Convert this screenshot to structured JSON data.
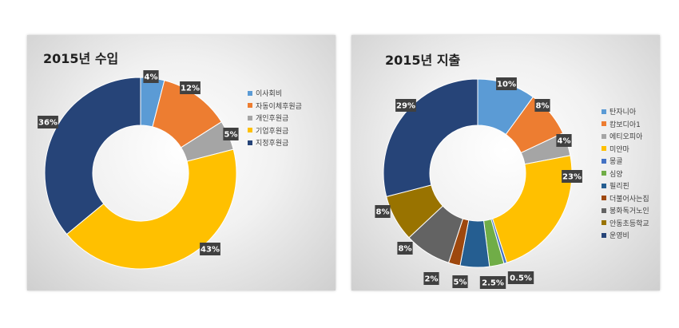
{
  "chart_data": [
    {
      "type": "pie",
      "title": "2015년 수입",
      "categories": [
        "이사회비",
        "자동이체후원금",
        "개인후원금",
        "기업후원금",
        "지정후원금"
      ],
      "values": [
        4,
        12,
        5,
        43,
        36
      ],
      "labels": [
        "4%",
        "12%",
        "5%",
        "43%",
        "36%"
      ],
      "colors": [
        "#5b9bd5",
        "#ed7d31",
        "#a5a5a5",
        "#ffc000",
        "#264478"
      ],
      "legend": "right"
    },
    {
      "type": "pie",
      "title": "2015년 지출",
      "categories": [
        "탄자니아",
        "캄보디아1",
        "에티오피아",
        "미얀마",
        "몽골",
        "심양",
        "필리핀",
        "더불어사는집",
        "봉화독거노인",
        "안동초등학교",
        "운영비"
      ],
      "values": [
        10,
        8,
        4,
        23,
        0.5,
        2.5,
        5,
        2,
        8,
        8,
        29
      ],
      "labels": [
        "10%",
        "8%",
        "4%",
        "23%",
        "0.5%",
        "2.5%",
        "5%",
        "2%",
        "8%",
        "8%",
        "29%"
      ],
      "colors": [
        "#5b9bd5",
        "#ed7d31",
        "#a5a5a5",
        "#ffc000",
        "#4472c4",
        "#70ad47",
        "#255e91",
        "#9e480e",
        "#636363",
        "#997300",
        "#264478"
      ],
      "legend": "right"
    }
  ]
}
